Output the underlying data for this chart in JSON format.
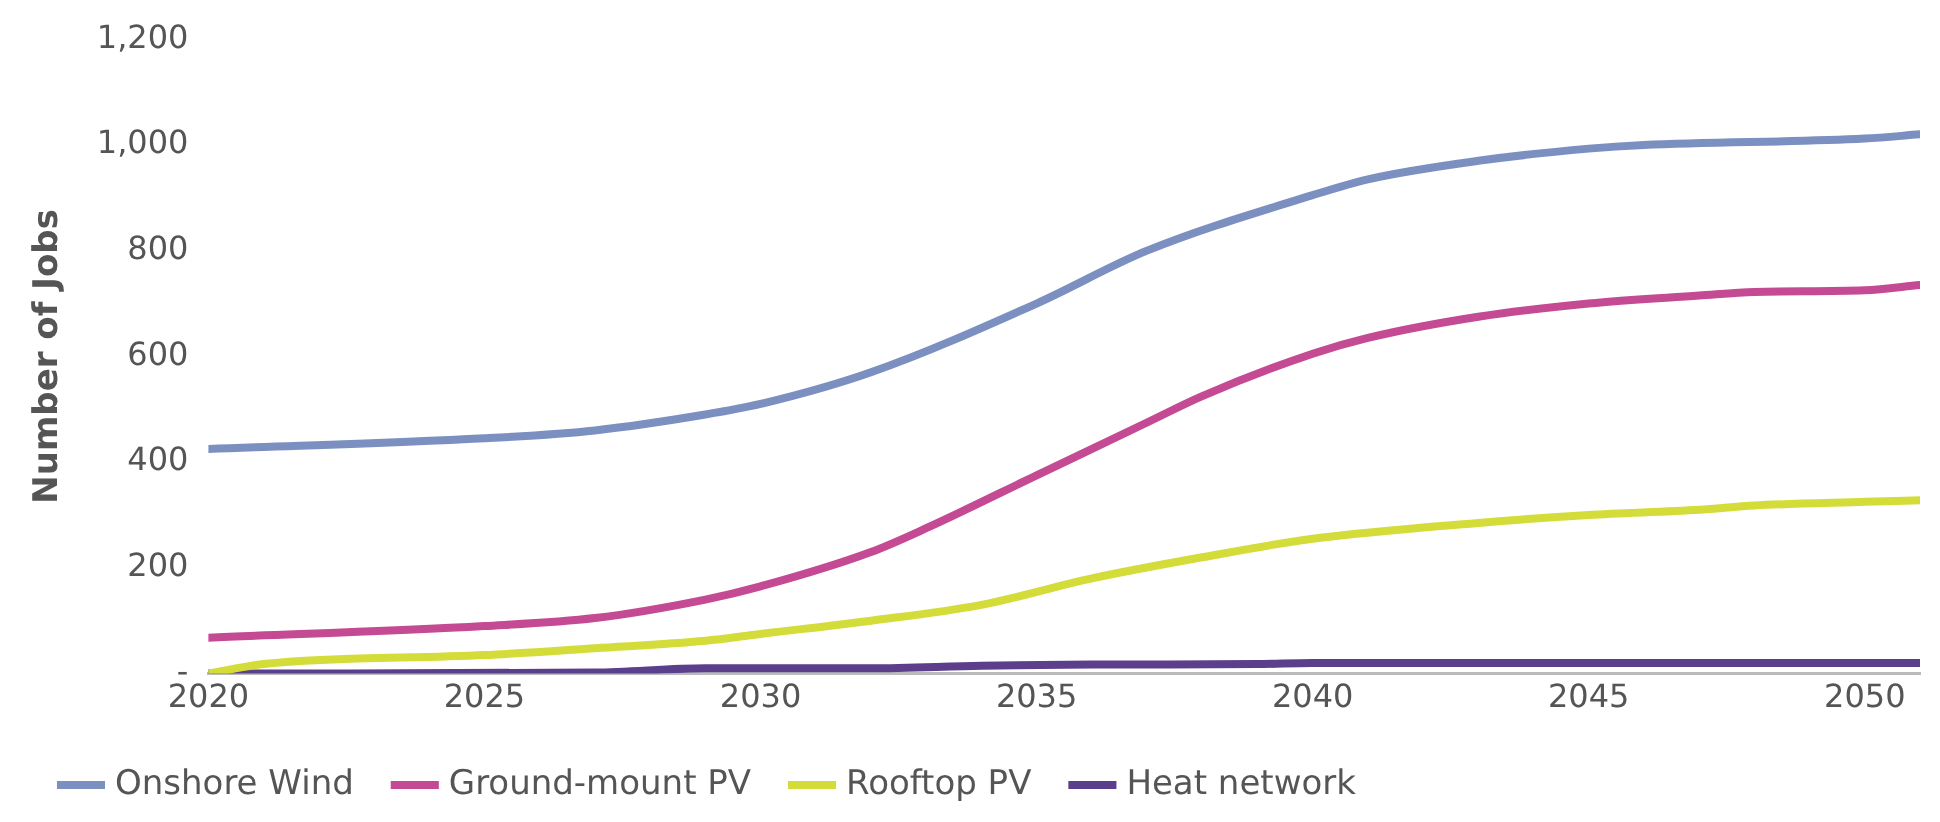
{
  "chart_data": {
    "type": "line",
    "ylabel": "Number of Jobs",
    "xlim": [
      2020,
      2051
    ],
    "xticks": [
      2020,
      2025,
      2030,
      2035,
      2040,
      2045,
      2050
    ],
    "ylim": [
      0,
      1200
    ],
    "yticks": [
      {
        "value": 0,
        "label": "-"
      },
      {
        "value": 200,
        "label": "200"
      },
      {
        "value": 400,
        "label": "400"
      },
      {
        "value": 600,
        "label": "600"
      },
      {
        "value": 800,
        "label": "800"
      },
      {
        "value": 1000,
        "label": "1,000"
      },
      {
        "value": 1200,
        "label": "1,200"
      }
    ],
    "grid": false,
    "legend": "bottom",
    "marker": "none",
    "line_style": "solid",
    "series": [
      {
        "name": "Onshore Wind",
        "color": "#7b90c0",
        "x": [
          2020,
          2025,
          2027,
          2029,
          2030,
          2032,
          2035,
          2037,
          2040,
          2041,
          2043,
          2045,
          2046,
          2050,
          2051
        ],
        "values": [
          425,
          445,
          460,
          490,
          510,
          570,
          700,
          800,
          905,
          935,
          970,
          993,
          1000,
          1012,
          1020
        ]
      },
      {
        "name": "Ground-mount PV",
        "color": "#c44a93",
        "x": [
          2020,
          2025,
          2027,
          2029,
          2030,
          2032,
          2033,
          2035,
          2037,
          2038,
          2040,
          2041,
          2043,
          2045,
          2047,
          2048,
          2050,
          2051
        ],
        "values": [
          68,
          90,
          105,
          140,
          165,
          230,
          275,
          375,
          475,
          525,
          605,
          635,
          675,
          700,
          715,
          722,
          725,
          735
        ]
      },
      {
        "name": "Rooftop PV",
        "color": "#d4dc3a",
        "x": [
          2020,
          2021,
          2025,
          2027,
          2029,
          2030,
          2032,
          2034,
          2036,
          2038,
          2040,
          2043,
          2045,
          2047,
          2048,
          2050,
          2051
        ],
        "values": [
          0,
          18,
          35,
          48,
          62,
          75,
          100,
          130,
          180,
          220,
          255,
          285,
          300,
          310,
          318,
          325,
          328
        ]
      },
      {
        "name": "Heat network",
        "color": "#5b3f8c",
        "x": [
          2020,
          2027,
          2029,
          2032,
          2034,
          2036,
          2039,
          2040,
          2051
        ],
        "values": [
          0,
          2,
          10,
          10,
          15,
          17,
          18,
          20,
          20
        ]
      }
    ]
  }
}
